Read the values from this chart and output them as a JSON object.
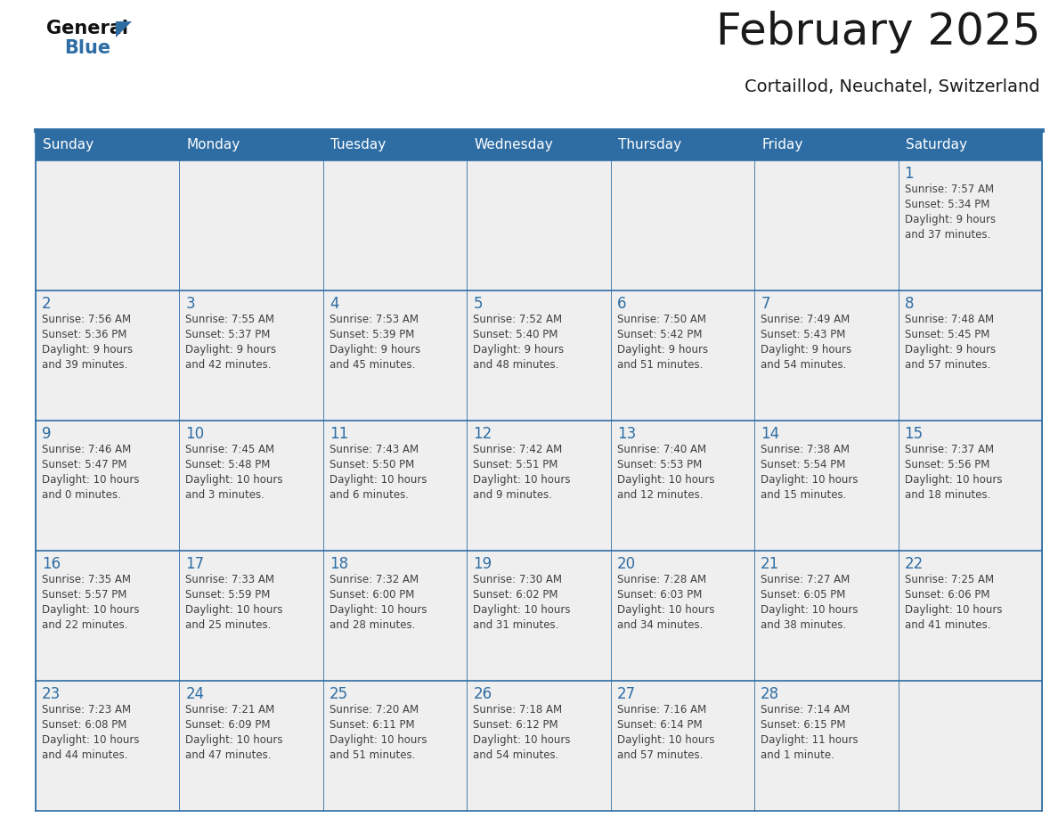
{
  "title": "February 2025",
  "subtitle": "Cortaillod, Neuchatel, Switzerland",
  "days_of_week": [
    "Sunday",
    "Monday",
    "Tuesday",
    "Wednesday",
    "Thursday",
    "Friday",
    "Saturday"
  ],
  "header_bg": "#2E6DA4",
  "header_text": "#FFFFFF",
  "cell_bg": "#EFEFEF",
  "cell_border": "#2E6DA4",
  "day_number_color": "#2E6DA4",
  "info_text_color": "#404040",
  "title_color": "#1a1a1a",
  "logo_general_color": "#111111",
  "logo_blue_color": "#2E6DA4",
  "calendar_data": [
    [
      null,
      null,
      null,
      null,
      null,
      null,
      {
        "day": "1",
        "sunrise": "7:57 AM",
        "sunset": "5:34 PM",
        "daylight_l1": "Daylight: 9 hours",
        "daylight_l2": "and 37 minutes."
      }
    ],
    [
      {
        "day": "2",
        "sunrise": "7:56 AM",
        "sunset": "5:36 PM",
        "daylight_l1": "Daylight: 9 hours",
        "daylight_l2": "and 39 minutes."
      },
      {
        "day": "3",
        "sunrise": "7:55 AM",
        "sunset": "5:37 PM",
        "daylight_l1": "Daylight: 9 hours",
        "daylight_l2": "and 42 minutes."
      },
      {
        "day": "4",
        "sunrise": "7:53 AM",
        "sunset": "5:39 PM",
        "daylight_l1": "Daylight: 9 hours",
        "daylight_l2": "and 45 minutes."
      },
      {
        "day": "5",
        "sunrise": "7:52 AM",
        "sunset": "5:40 PM",
        "daylight_l1": "Daylight: 9 hours",
        "daylight_l2": "and 48 minutes."
      },
      {
        "day": "6",
        "sunrise": "7:50 AM",
        "sunset": "5:42 PM",
        "daylight_l1": "Daylight: 9 hours",
        "daylight_l2": "and 51 minutes."
      },
      {
        "day": "7",
        "sunrise": "7:49 AM",
        "sunset": "5:43 PM",
        "daylight_l1": "Daylight: 9 hours",
        "daylight_l2": "and 54 minutes."
      },
      {
        "day": "8",
        "sunrise": "7:48 AM",
        "sunset": "5:45 PM",
        "daylight_l1": "Daylight: 9 hours",
        "daylight_l2": "and 57 minutes."
      }
    ],
    [
      {
        "day": "9",
        "sunrise": "7:46 AM",
        "sunset": "5:47 PM",
        "daylight_l1": "Daylight: 10 hours",
        "daylight_l2": "and 0 minutes."
      },
      {
        "day": "10",
        "sunrise": "7:45 AM",
        "sunset": "5:48 PM",
        "daylight_l1": "Daylight: 10 hours",
        "daylight_l2": "and 3 minutes."
      },
      {
        "day": "11",
        "sunrise": "7:43 AM",
        "sunset": "5:50 PM",
        "daylight_l1": "Daylight: 10 hours",
        "daylight_l2": "and 6 minutes."
      },
      {
        "day": "12",
        "sunrise": "7:42 AM",
        "sunset": "5:51 PM",
        "daylight_l1": "Daylight: 10 hours",
        "daylight_l2": "and 9 minutes."
      },
      {
        "day": "13",
        "sunrise": "7:40 AM",
        "sunset": "5:53 PM",
        "daylight_l1": "Daylight: 10 hours",
        "daylight_l2": "and 12 minutes."
      },
      {
        "day": "14",
        "sunrise": "7:38 AM",
        "sunset": "5:54 PM",
        "daylight_l1": "Daylight: 10 hours",
        "daylight_l2": "and 15 minutes."
      },
      {
        "day": "15",
        "sunrise": "7:37 AM",
        "sunset": "5:56 PM",
        "daylight_l1": "Daylight: 10 hours",
        "daylight_l2": "and 18 minutes."
      }
    ],
    [
      {
        "day": "16",
        "sunrise": "7:35 AM",
        "sunset": "5:57 PM",
        "daylight_l1": "Daylight: 10 hours",
        "daylight_l2": "and 22 minutes."
      },
      {
        "day": "17",
        "sunrise": "7:33 AM",
        "sunset": "5:59 PM",
        "daylight_l1": "Daylight: 10 hours",
        "daylight_l2": "and 25 minutes."
      },
      {
        "day": "18",
        "sunrise": "7:32 AM",
        "sunset": "6:00 PM",
        "daylight_l1": "Daylight: 10 hours",
        "daylight_l2": "and 28 minutes."
      },
      {
        "day": "19",
        "sunrise": "7:30 AM",
        "sunset": "6:02 PM",
        "daylight_l1": "Daylight: 10 hours",
        "daylight_l2": "and 31 minutes."
      },
      {
        "day": "20",
        "sunrise": "7:28 AM",
        "sunset": "6:03 PM",
        "daylight_l1": "Daylight: 10 hours",
        "daylight_l2": "and 34 minutes."
      },
      {
        "day": "21",
        "sunrise": "7:27 AM",
        "sunset": "6:05 PM",
        "daylight_l1": "Daylight: 10 hours",
        "daylight_l2": "and 38 minutes."
      },
      {
        "day": "22",
        "sunrise": "7:25 AM",
        "sunset": "6:06 PM",
        "daylight_l1": "Daylight: 10 hours",
        "daylight_l2": "and 41 minutes."
      }
    ],
    [
      {
        "day": "23",
        "sunrise": "7:23 AM",
        "sunset": "6:08 PM",
        "daylight_l1": "Daylight: 10 hours",
        "daylight_l2": "and 44 minutes."
      },
      {
        "day": "24",
        "sunrise": "7:21 AM",
        "sunset": "6:09 PM",
        "daylight_l1": "Daylight: 10 hours",
        "daylight_l2": "and 47 minutes."
      },
      {
        "day": "25",
        "sunrise": "7:20 AM",
        "sunset": "6:11 PM",
        "daylight_l1": "Daylight: 10 hours",
        "daylight_l2": "and 51 minutes."
      },
      {
        "day": "26",
        "sunrise": "7:18 AM",
        "sunset": "6:12 PM",
        "daylight_l1": "Daylight: 10 hours",
        "daylight_l2": "and 54 minutes."
      },
      {
        "day": "27",
        "sunrise": "7:16 AM",
        "sunset": "6:14 PM",
        "daylight_l1": "Daylight: 10 hours",
        "daylight_l2": "and 57 minutes."
      },
      {
        "day": "28",
        "sunrise": "7:14 AM",
        "sunset": "6:15 PM",
        "daylight_l1": "Daylight: 11 hours",
        "daylight_l2": "and 1 minute."
      },
      null
    ]
  ],
  "num_rows": 5,
  "num_cols": 7
}
